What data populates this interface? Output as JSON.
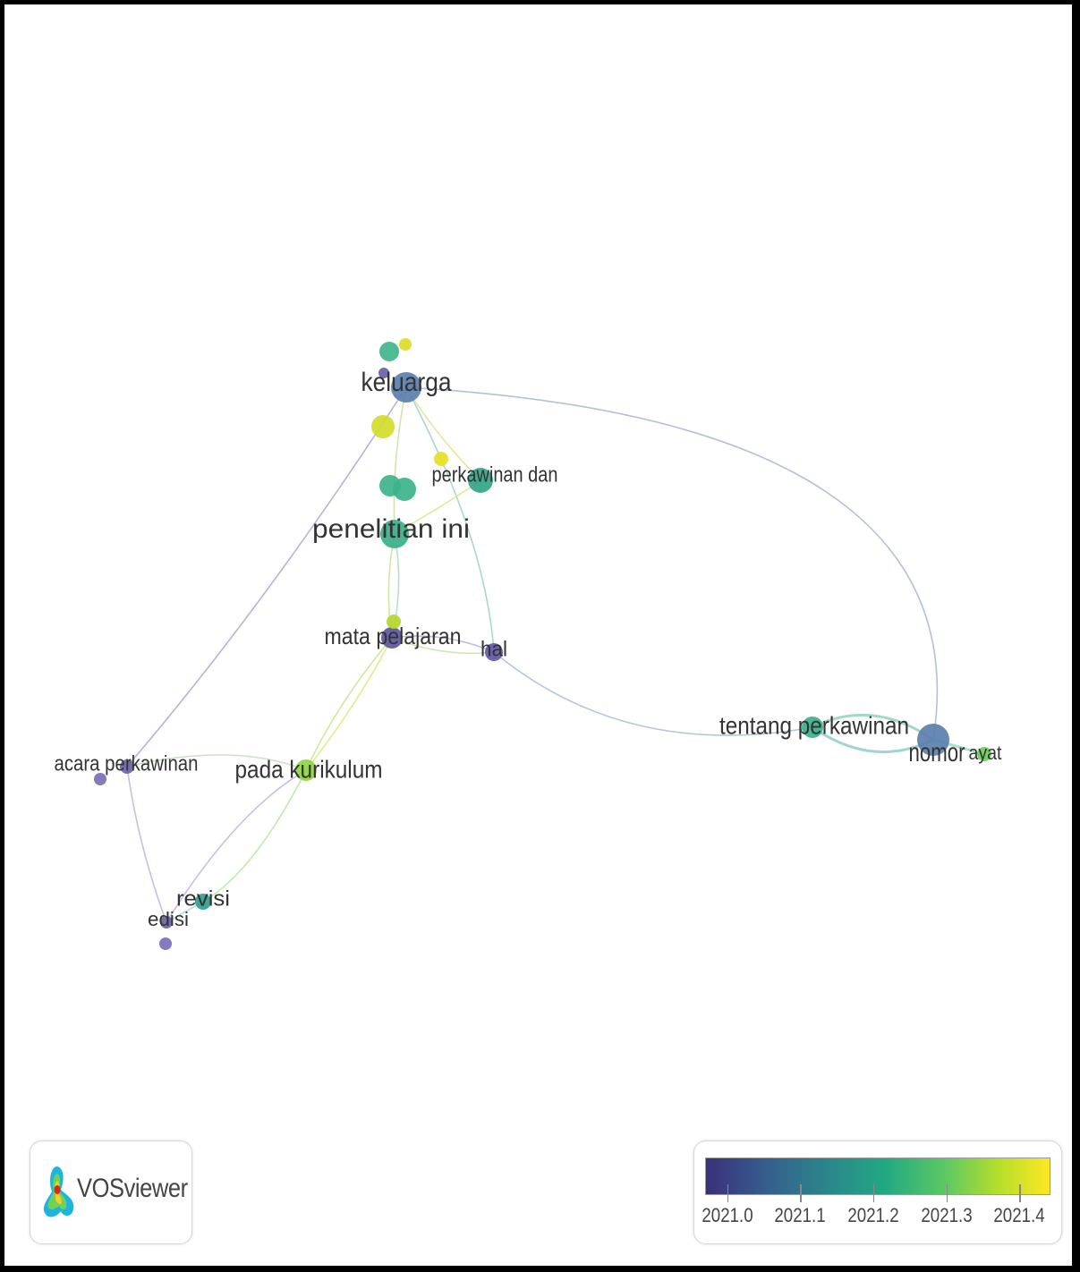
{
  "nodes": [
    {
      "id": "keluarga",
      "label": "keluarga",
      "color": "#5a7fae",
      "label_size": 30
    },
    {
      "id": "k_top1",
      "label": "",
      "color": "#3fb58c"
    },
    {
      "id": "k_top2",
      "label": "",
      "color": "#dcdc28"
    },
    {
      "id": "k_small",
      "label": "",
      "color": "#6b5fa8"
    },
    {
      "id": "k_yellow",
      "label": "",
      "color": "#d2dc2a"
    },
    {
      "id": "p_yellow",
      "label": "",
      "color": "#e6e024"
    },
    {
      "id": "perkawinan_dan",
      "label": "perkawinan dan",
      "color": "#32a587",
      "label_size": 24
    },
    {
      "id": "pi_a",
      "label": "",
      "color": "#3cb48b"
    },
    {
      "id": "pi_b",
      "label": "",
      "color": "#3cb48b"
    },
    {
      "id": "penelitian_ini",
      "label": "penelitian ini",
      "color": "#38b08a",
      "label_size": 30
    },
    {
      "id": "mata_pelajaran",
      "label": "mata pelajaran",
      "color": "#5c55a0",
      "label_size": 26
    },
    {
      "id": "mp_green",
      "label": "",
      "color": "#b4d62c"
    },
    {
      "id": "hal",
      "label": "hal",
      "color": "#5f58a6",
      "label_size": 24
    },
    {
      "id": "tentang_perkawinan",
      "label": "tentang perkawinan",
      "color": "#3ab08b",
      "label_size": 28
    },
    {
      "id": "nomor",
      "label": "nomor",
      "color": "#5a7fae",
      "label_size": 30
    },
    {
      "id": "ayat",
      "label": "ayat",
      "color": "#6ccc5e",
      "label_size": 22
    },
    {
      "id": "acara_perkawinan",
      "label": "acara perkawinan",
      "color": "#6a63aa",
      "label_size": 24
    },
    {
      "id": "ap_small",
      "label": "",
      "color": "#7a6fbb"
    },
    {
      "id": "pada_kurikulum",
      "label": "pada kurikulum",
      "color": "#8fd244",
      "label_size": 28
    },
    {
      "id": "revisi",
      "label": "revisi",
      "color": "#2e9d8f",
      "label_size": 24
    },
    {
      "id": "edisi",
      "label": "edisi",
      "color": "#6a63aa",
      "label_size": 22
    },
    {
      "id": "edisi_small",
      "label": "",
      "color": "#7a6fbb"
    }
  ],
  "links": [
    {
      "source": "keluarga",
      "target": "nomor",
      "color": "#a9b4d4"
    },
    {
      "source": "keluarga",
      "target": "acara_perkawinan",
      "color": "#a9a5d4"
    },
    {
      "source": "keluarga",
      "target": "hal",
      "color": "#9ccfc5"
    },
    {
      "source": "keluarga",
      "target": "penelitian_ini",
      "color": "#c7e29b"
    },
    {
      "source": "keluarga",
      "target": "perkawinan_dan",
      "color": "#dbe38c"
    },
    {
      "source": "perkawinan_dan",
      "target": "penelitian_ini",
      "color": "#d8e58a"
    },
    {
      "source": "penelitian_ini",
      "target": "mata_pelajaran",
      "color": "#c5e39e"
    },
    {
      "source": "penelitian_ini",
      "target": "mata_pelajaran",
      "color": "#a9dcc0"
    },
    {
      "source": "mata_pelajaran",
      "target": "hal",
      "color": "#b3afd6"
    },
    {
      "source": "mata_pelajaran",
      "target": "hal",
      "color": "#c9e3a5"
    },
    {
      "source": "mata_pelajaran",
      "target": "pada_kurikulum",
      "color": "#c6e48f"
    },
    {
      "source": "mata_pelajaran",
      "target": "pada_kurikulum",
      "color": "#dbe97a"
    },
    {
      "source": "hal",
      "target": "tentang_perkawinan",
      "color": "#a5bfd3"
    },
    {
      "source": "tentang_perkawinan",
      "target": "nomor",
      "color": "#8ed2c1"
    },
    {
      "source": "tentang_perkawinan",
      "target": "nomor",
      "color": "#8fcfc4"
    },
    {
      "source": "nomor",
      "target": "ayat",
      "color": "#a0dcc4"
    },
    {
      "source": "acara_perkawinan",
      "target": "pada_kurikulum",
      "color": "#c9dcc0"
    },
    {
      "source": "acara_perkawinan",
      "target": "edisi",
      "color": "#b9b6dc"
    },
    {
      "source": "pada_kurikulum",
      "target": "revisi",
      "color": "#b9e49e"
    },
    {
      "source": "pada_kurikulum",
      "target": "edisi",
      "color": "#b9b6dc"
    },
    {
      "source": "revisi",
      "target": "edisi",
      "color": "#a9d6cf"
    }
  ],
  "logo": {
    "text": "VOSviewer"
  },
  "legend": {
    "ticks": [
      "2021.0",
      "2021.1",
      "2021.2",
      "2021.3",
      "2021.4"
    ],
    "range": [
      2020.97,
      2021.44
    ],
    "colors": [
      "#3b2f7a",
      "#355f8d",
      "#2a8c8a",
      "#22a884",
      "#5ec962",
      "#b5de2b",
      "#fde725"
    ]
  }
}
